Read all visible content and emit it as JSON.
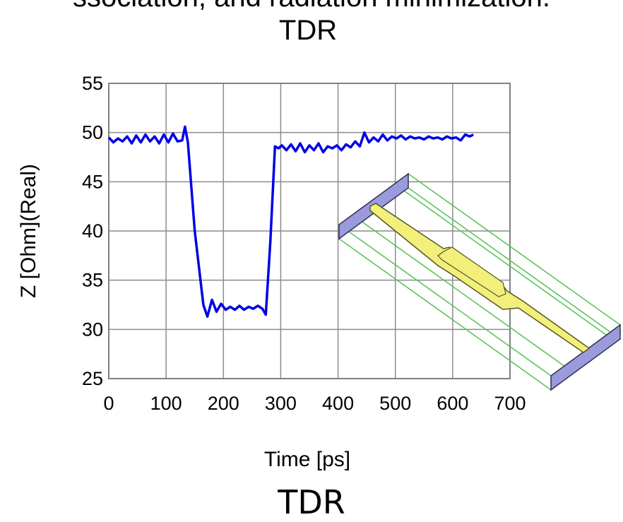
{
  "top_cutoff_text": "ssociation, and radiation minimization.",
  "caption": "TDR",
  "chart_data": {
    "type": "line",
    "title": "TDR",
    "xlabel": "Time [ps]",
    "ylabel": "Z [Ohm](Real)",
    "xlim": [
      0,
      700
    ],
    "ylim": [
      25,
      55
    ],
    "xticks": [
      "0",
      "100",
      "200",
      "300",
      "400",
      "500",
      "600",
      "700"
    ],
    "yticks": [
      "25",
      "30",
      "35",
      "40",
      "45",
      "50",
      "55"
    ],
    "grid": true,
    "line_color": "#0000e6",
    "series": [
      {
        "x": [
          0,
          8,
          16,
          24,
          32,
          40,
          48,
          56,
          64,
          72,
          80,
          88,
          96,
          104,
          112,
          120,
          128,
          133,
          138,
          150,
          165,
          172,
          180,
          188,
          196,
          204,
          212,
          220,
          228,
          236,
          244,
          252,
          260,
          268,
          274,
          282,
          290,
          296,
          302,
          310,
          318,
          326,
          334,
          342,
          350,
          358,
          366,
          374,
          382,
          390,
          398,
          406,
          414,
          422,
          430,
          438,
          446,
          454,
          462,
          470,
          478,
          486,
          494,
          502,
          510,
          518,
          526,
          534,
          542,
          550,
          558,
          566,
          574,
          582,
          590,
          598,
          606,
          614,
          622,
          630,
          636
        ],
        "y": [
          49.5,
          49.0,
          49.4,
          49.1,
          49.6,
          48.9,
          49.7,
          49.0,
          49.8,
          49.1,
          49.6,
          48.9,
          49.8,
          49.0,
          49.9,
          49.1,
          49.2,
          50.6,
          49.0,
          40.0,
          32.5,
          31.3,
          33.0,
          31.8,
          32.6,
          32.0,
          32.3,
          32.0,
          32.4,
          32.0,
          32.3,
          32.1,
          32.4,
          32.1,
          31.5,
          39.0,
          48.6,
          48.4,
          48.7,
          48.2,
          48.8,
          48.1,
          48.9,
          48.0,
          48.7,
          48.2,
          48.9,
          48.0,
          48.6,
          48.4,
          48.7,
          48.2,
          48.8,
          48.5,
          49.1,
          48.6,
          50.0,
          49.0,
          49.5,
          49.1,
          49.8,
          49.2,
          49.6,
          49.4,
          49.7,
          49.3,
          49.6,
          49.4,
          49.5,
          49.3,
          49.6,
          49.4,
          49.5,
          49.3,
          49.6,
          49.4,
          49.5,
          49.2,
          49.8,
          49.6,
          49.8
        ]
      }
    ]
  }
}
